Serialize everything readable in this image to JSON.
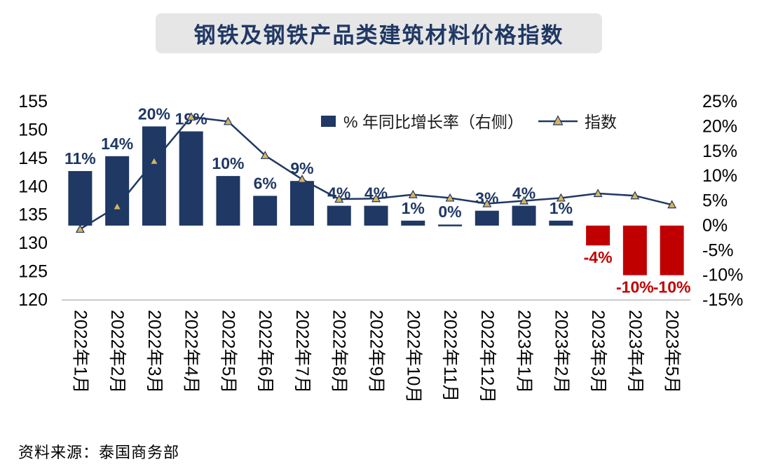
{
  "title": "钢铁及钢铁产品类建筑材料价格指数",
  "source": "资料来源：泰国商务部",
  "colors": {
    "navy": "#1F3864",
    "negative_red": "#C00000",
    "marker_fill": "#D9B45B",
    "title_bg": "#E7E6E6",
    "axis_line": "#ADADAD"
  },
  "chart_data": {
    "type": "combo-bar-line",
    "categories": [
      "2022年1月",
      "2022年2月",
      "2022年3月",
      "2022年4月",
      "2022年5月",
      "2022年6月",
      "2022年7月",
      "2022年8月",
      "2022年9月",
      "2022年10月",
      "2022年11月",
      "2022年12月",
      "2023年1月",
      "2023年2月",
      "2023年3月",
      "2023年4月",
      "2023年5月"
    ],
    "series": [
      {
        "name": "% 年同比增长率（右侧）",
        "type": "bar",
        "axis": "right",
        "values": [
          11,
          14,
          20,
          19,
          10,
          6,
          9,
          4,
          4,
          1,
          0,
          3,
          4,
          1,
          -4,
          -10,
          -10
        ],
        "labels": [
          "11%",
          "14%",
          "20%",
          "19%",
          "10%",
          "6%",
          "9%",
          "4%",
          "4%",
          "1%",
          "0%",
          "3%",
          "4%",
          "1%",
          "-4%",
          "-10%",
          "-10%"
        ],
        "color_positive": "#1F3864",
        "color_negative": "#C00000"
      },
      {
        "name": "指数",
        "type": "line",
        "axis": "left",
        "values": [
          132.5,
          136.5,
          144.5,
          152.3,
          151.5,
          145.5,
          141.3,
          137.8,
          137.9,
          138.6,
          138.0,
          137.0,
          137.5,
          138.0,
          138.8,
          138.4,
          136.8
        ],
        "color": "#1F3864",
        "marker": "triangle",
        "marker_fill": "#D9B45B"
      }
    ],
    "left_axis": {
      "min": 120,
      "max": 155,
      "ticks": [
        155,
        150,
        145,
        140,
        135,
        130,
        125,
        120
      ]
    },
    "right_axis": {
      "min": -15,
      "max": 25,
      "tick_values": [
        25,
        20,
        15,
        10,
        5,
        0,
        -5,
        -10,
        -15
      ],
      "tick_suffix": "%"
    },
    "legend": [
      "% 年同比增长率（右侧）",
      "指数"
    ],
    "grid": false,
    "legend_position": "top-center-inside"
  }
}
